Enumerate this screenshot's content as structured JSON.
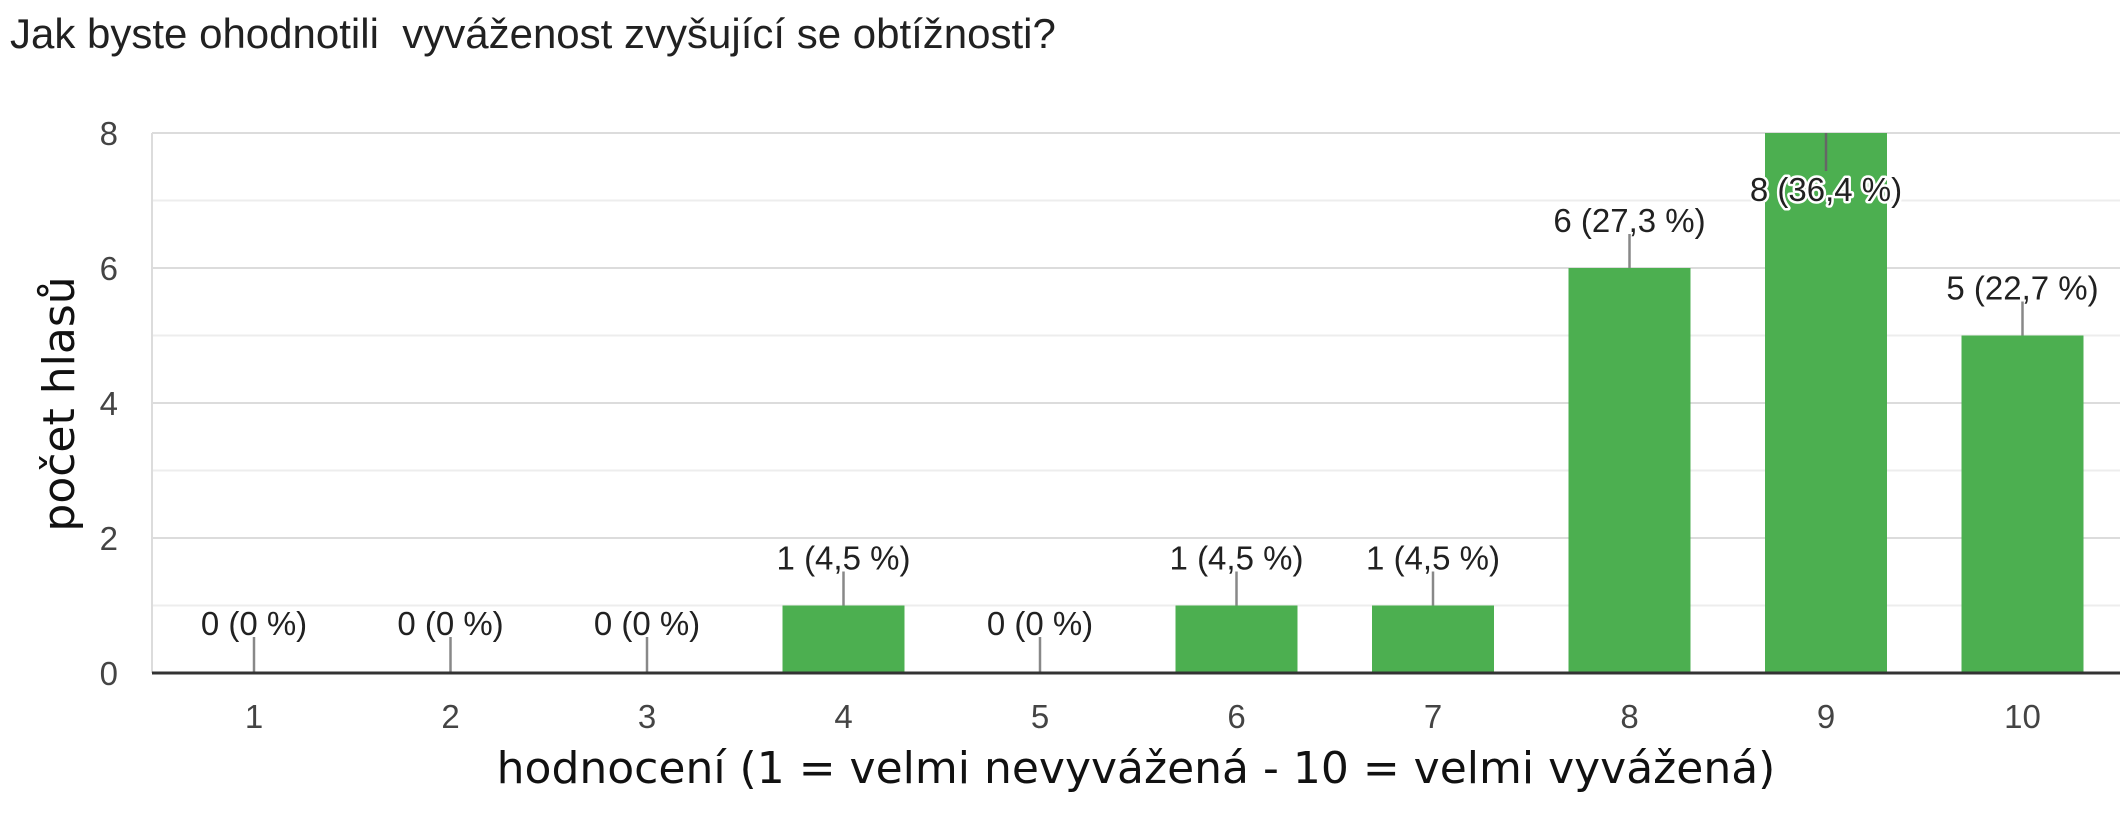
{
  "chart_data": {
    "type": "bar",
    "title": "Jak byste ohodnotili  vyváženost zvyšující se obtížnosti?",
    "xlabel": "hodnocení (1 = velmi nevyvážená - 10 = velmi vyvážená)",
    "ylabel": "počet hlasů",
    "categories": [
      "1",
      "2",
      "3",
      "4",
      "5",
      "6",
      "7",
      "8",
      "9",
      "10"
    ],
    "values": [
      0,
      0,
      0,
      1,
      0,
      1,
      1,
      6,
      8,
      5
    ],
    "data_labels": [
      "0 (0 %)",
      "0 (0 %)",
      "0 (0 %)",
      "1 (4,5 %)",
      "0 (0 %)",
      "1 (4,5 %)",
      "1 (4,5 %)",
      "6 (27,3 %)",
      "8 (36,4 %)",
      "5 (22,7 %)"
    ],
    "y_ticks": [
      "0",
      "2",
      "4",
      "6",
      "8"
    ],
    "ylim": [
      0,
      8
    ],
    "grid": true,
    "legend": "none",
    "bar_color": "#4caf50"
  }
}
